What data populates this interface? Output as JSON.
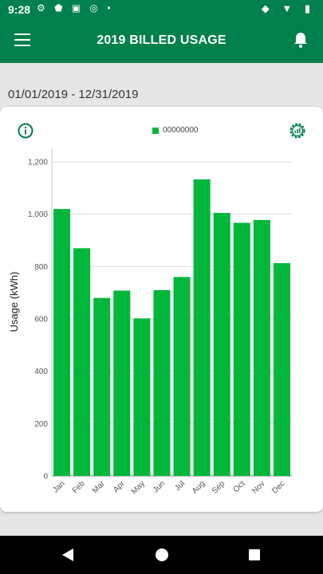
{
  "status": {
    "time": "9:28"
  },
  "header": {
    "title": "2019 BILLED USAGE"
  },
  "date_range": "01/01/2019 - 12/31/2019",
  "legend": {
    "label": "00000000"
  },
  "colors": {
    "brand": "#00804a",
    "bar": "#00b73b"
  },
  "chart_data": {
    "type": "bar",
    "categories": [
      "Jan",
      "Feb",
      "Mar",
      "Apr",
      "May",
      "Jun",
      "Jul",
      "Aug",
      "Sep",
      "Oct",
      "Nov",
      "Dec"
    ],
    "series": [
      {
        "name": "00000000",
        "values": [
          1020,
          870,
          680,
          708,
          602,
          710,
          760,
          1133,
          1005,
          967,
          978,
          813
        ]
      }
    ],
    "ylabel": "Usage (kWh)",
    "ylim": [
      0,
      1200
    ],
    "yticks": [
      "0",
      "200",
      "400",
      "600",
      "800",
      "1,000",
      "1,200"
    ],
    "grid": true,
    "legend_position": "top"
  }
}
